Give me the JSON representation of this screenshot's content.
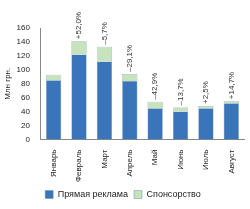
{
  "chart_data": {
    "type": "bar",
    "stacked": true,
    "y_label": "Млн грн.",
    "categories": [
      "Январь",
      "Февраль",
      "Март",
      "Апрель",
      "Май",
      "Июнь",
      "Июль",
      "Август"
    ],
    "series": [
      {
        "name": "Прямая реклама",
        "color": "#3b75b9",
        "values": [
          85,
          122,
          112,
          84,
          45,
          40,
          45,
          52
        ]
      },
      {
        "name": "Спонсорство",
        "color": "#c6e3bd",
        "values": [
          8,
          19,
          21,
          10,
          9,
          6,
          3,
          3
        ]
      }
    ],
    "annotations": [
      null,
      "+52,0%",
      "–5,7%",
      "–29,1%",
      "–42,9%",
      "–13,7%",
      "+2,5%",
      "+14,7%"
    ],
    "ylim": [
      0,
      160
    ],
    "yticks": [
      0,
      20,
      40,
      60,
      80,
      100,
      120,
      140,
      160
    ],
    "grid": false,
    "legend": "bottom"
  }
}
